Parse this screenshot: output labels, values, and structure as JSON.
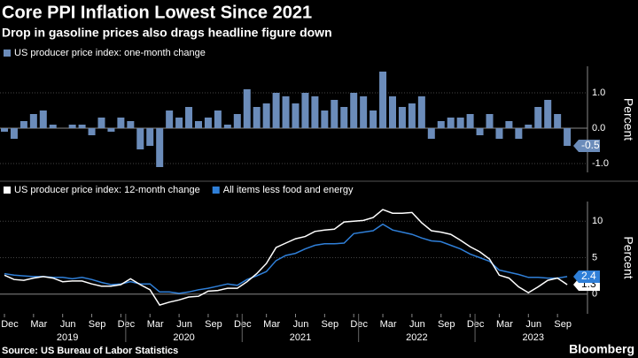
{
  "title": "Core PPI Inflation Lowest Since 2021",
  "subtitle": "Drop in gasoline prices also drags headline figure down",
  "source": "Source: US Bureau of Labor Statistics",
  "brand": "Bloomberg",
  "chart_data": [
    {
      "type": "bar",
      "y_label": "Percent",
      "x": [
        "2018-12",
        "2019-01",
        "2019-02",
        "2019-03",
        "2019-04",
        "2019-05",
        "2019-06",
        "2019-07",
        "2019-08",
        "2019-09",
        "2019-10",
        "2019-11",
        "2019-12",
        "2020-01",
        "2020-02",
        "2020-03",
        "2020-04",
        "2020-05",
        "2020-06",
        "2020-07",
        "2020-08",
        "2020-09",
        "2020-10",
        "2020-11",
        "2020-12",
        "2021-01",
        "2021-02",
        "2021-03",
        "2021-04",
        "2021-05",
        "2021-06",
        "2021-07",
        "2021-08",
        "2021-09",
        "2021-10",
        "2021-11",
        "2021-12",
        "2022-01",
        "2022-02",
        "2022-03",
        "2022-04",
        "2022-05",
        "2022-06",
        "2022-07",
        "2022-08",
        "2022-09",
        "2022-10",
        "2022-11",
        "2022-12",
        "2023-01",
        "2023-02",
        "2023-03",
        "2023-04",
        "2023-05",
        "2023-06",
        "2023-07",
        "2023-08",
        "2023-09",
        "2023-10"
      ],
      "series": [
        {
          "name": "US producer price index: one-month change",
          "color": "#6b8cba",
          "values": [
            -0.1,
            -0.3,
            0.2,
            0.4,
            0.5,
            0.1,
            0.0,
            0.1,
            0.1,
            -0.2,
            0.3,
            -0.1,
            0.3,
            0.2,
            -0.6,
            -0.5,
            -1.1,
            0.5,
            0.3,
            0.6,
            0.2,
            0.3,
            0.5,
            0.1,
            0.4,
            1.1,
            0.6,
            0.7,
            1.0,
            0.9,
            0.7,
            1.0,
            0.9,
            0.5,
            0.8,
            0.6,
            1.0,
            0.9,
            0.5,
            1.6,
            0.9,
            0.6,
            0.7,
            0.9,
            -0.3,
            0.2,
            0.3,
            0.3,
            0.4,
            -0.2,
            0.4,
            -0.3,
            0.2,
            -0.3,
            0.1,
            0.6,
            0.8,
            0.4,
            -0.5
          ]
        }
      ],
      "ylim": [
        -1.25,
        1.75
      ],
      "yticks": [
        {
          "value": -1,
          "label": "-1.0"
        },
        {
          "value": 0,
          "label": "0.0"
        },
        {
          "value": 1,
          "label": "1.0"
        }
      ],
      "grid": true
    },
    {
      "type": "line",
      "y_label": "Percent",
      "x": [
        "2018-12",
        "2019-01",
        "2019-02",
        "2019-03",
        "2019-04",
        "2019-05",
        "2019-06",
        "2019-07",
        "2019-08",
        "2019-09",
        "2019-10",
        "2019-11",
        "2019-12",
        "2020-01",
        "2020-02",
        "2020-03",
        "2020-04",
        "2020-05",
        "2020-06",
        "2020-07",
        "2020-08",
        "2020-09",
        "2020-10",
        "2020-11",
        "2020-12",
        "2021-01",
        "2021-02",
        "2021-03",
        "2021-04",
        "2021-05",
        "2021-06",
        "2021-07",
        "2021-08",
        "2021-09",
        "2021-10",
        "2021-11",
        "2021-12",
        "2022-01",
        "2022-02",
        "2022-03",
        "2022-04",
        "2022-05",
        "2022-06",
        "2022-07",
        "2022-08",
        "2022-09",
        "2022-10",
        "2022-11",
        "2022-12",
        "2023-01",
        "2023-02",
        "2023-03",
        "2023-04",
        "2023-05",
        "2023-06",
        "2023-07",
        "2023-08",
        "2023-09",
        "2023-10"
      ],
      "series": [
        {
          "name": "US producer price index: 12-month change",
          "color": "#ffffff",
          "values": [
            2.6,
            2.0,
            1.9,
            2.2,
            2.4,
            2.2,
            1.7,
            1.8,
            1.8,
            1.4,
            1.1,
            1.1,
            1.3,
            2.1,
            1.3,
            0.6,
            -1.5,
            -1.1,
            -0.8,
            -0.4,
            -0.3,
            0.4,
            0.5,
            0.8,
            0.8,
            1.7,
            2.8,
            4.2,
            6.4,
            7.0,
            7.6,
            7.9,
            8.6,
            8.8,
            8.9,
            9.9,
            10.0,
            10.1,
            10.5,
            11.6,
            11.1,
            11.1,
            11.2,
            9.8,
            8.7,
            8.5,
            8.2,
            7.4,
            6.5,
            5.8,
            4.8,
            2.6,
            2.2,
            1.0,
            0.2,
            1.0,
            1.9,
            2.2,
            1.3
          ]
        },
        {
          "name": "All items less food and energy",
          "color": "#2f7fd8",
          "values": [
            2.8,
            2.6,
            2.5,
            2.4,
            2.4,
            2.3,
            2.3,
            2.1,
            2.3,
            2.0,
            1.6,
            1.3,
            1.4,
            1.7,
            1.4,
            1.4,
            0.3,
            0.3,
            0.1,
            0.3,
            0.6,
            0.8,
            1.1,
            1.4,
            1.2,
            2.0,
            2.5,
            3.1,
            4.6,
            5.3,
            5.6,
            6.2,
            6.7,
            6.9,
            6.9,
            7.0,
            8.3,
            8.5,
            8.7,
            9.6,
            8.8,
            8.5,
            8.2,
            7.7,
            7.3,
            7.2,
            6.7,
            6.2,
            5.5,
            5.0,
            4.5,
            3.3,
            3.0,
            2.7,
            2.3,
            2.3,
            2.2,
            2.2,
            2.4
          ]
        }
      ],
      "ylim": [
        -2.7,
        12.7
      ],
      "yticks": [
        0,
        5,
        10
      ],
      "grid": true,
      "xticks": [
        {
          "value": "2018-12",
          "label": "Dec"
        },
        {
          "value": "2019-03",
          "label": "Mar"
        },
        {
          "value": "2019-06",
          "label": "Jun"
        },
        {
          "value": "2019-09",
          "label": "Sep"
        },
        {
          "value": "2019-12",
          "label": "Dec"
        },
        {
          "value": "2020-03",
          "label": "Mar"
        },
        {
          "value": "2020-06",
          "label": "Jun"
        },
        {
          "value": "2020-09",
          "label": "Sep"
        },
        {
          "value": "2020-12",
          "label": "Dec"
        },
        {
          "value": "2021-03",
          "label": "Mar"
        },
        {
          "value": "2021-06",
          "label": "Jun"
        },
        {
          "value": "2021-09",
          "label": "Sep"
        },
        {
          "value": "2021-12",
          "label": "Dec"
        },
        {
          "value": "2022-03",
          "label": "Mar"
        },
        {
          "value": "2022-06",
          "label": "Jun"
        },
        {
          "value": "2022-09",
          "label": "Sep"
        },
        {
          "value": "2022-12",
          "label": "Dec"
        },
        {
          "value": "2023-03",
          "label": "Mar"
        },
        {
          "value": "2023-06",
          "label": "Jun"
        },
        {
          "value": "2023-09",
          "label": "Sep"
        }
      ],
      "years": [
        "2019",
        "2020",
        "2021",
        "2022",
        "2023"
      ]
    }
  ]
}
